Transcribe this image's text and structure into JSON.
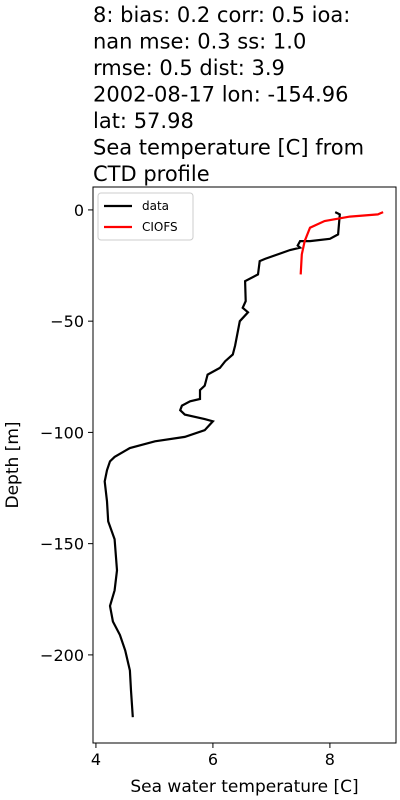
{
  "chart_data": {
    "type": "line",
    "title": [
      "8: bias: 0.2  corr: 0.5  ioa:",
      "nan  mse: 0.3  ss: 1.0",
      "rmse: 0.5  dist: 3.9",
      "2002-08-17 lon: -154.96",
      "lat: 57.98",
      "Sea temperature [C] from",
      "CTD profile"
    ],
    "xlabel": "Sea water temperature [C]",
    "ylabel": "Depth [m]",
    "xlim": [
      3.95,
      9.13
    ],
    "ylim": [
      -239.6,
      10.3
    ],
    "xticks": [
      4,
      6,
      8
    ],
    "yticks": [
      0,
      {
        "value": -50,
        "label": "−50"
      },
      {
        "value": -100,
        "label": "−100"
      },
      {
        "value": -150,
        "label": "−150"
      },
      {
        "value": -200,
        "label": "−200"
      }
    ],
    "legend": "upper left",
    "series": [
      {
        "name": "data",
        "color": "#000000",
        "x": [
          8.09,
          8.17,
          8.14,
          8.0,
          7.66,
          7.49,
          7.45,
          7.49,
          7.32,
          6.89,
          6.8,
          6.77,
          6.55,
          6.56,
          6.51,
          6.6,
          6.46,
          6.38,
          6.34,
          6.21,
          6.12,
          5.91,
          5.86,
          5.78,
          5.78,
          5.61,
          5.47,
          5.44,
          5.52,
          5.86,
          6.0,
          5.86,
          5.52,
          5.01,
          4.58,
          4.32,
          4.24,
          4.19,
          4.15,
          4.19,
          4.21,
          4.32,
          4.36,
          4.32,
          4.24,
          4.29,
          4.41,
          4.5,
          4.58,
          4.6,
          4.63
        ],
        "values": [
          -1,
          -2,
          -11,
          -13,
          -14,
          -14,
          -16,
          -17,
          -18,
          -22,
          -23,
          -29,
          -32,
          -41,
          -44,
          -46,
          -50,
          -61,
          -65,
          -68,
          -71,
          -74,
          -79,
          -81,
          -85,
          -86,
          -88,
          -90,
          -92,
          -94,
          -95,
          -99,
          -102,
          -104,
          -107,
          -111,
          -113,
          -117,
          -122,
          -131,
          -140,
          -148,
          -162,
          -171,
          -178,
          -185,
          -191,
          -198,
          -207,
          -216,
          -228
        ]
      },
      {
        "name": "CIOFS",
        "color": "#ff0000",
        "x": [
          8.91,
          8.82,
          8.34,
          7.91,
          7.66,
          7.57,
          7.52,
          7.5
        ],
        "values": [
          -1,
          -2,
          -3,
          -5,
          -8,
          -14,
          -20,
          -29
        ]
      }
    ]
  }
}
